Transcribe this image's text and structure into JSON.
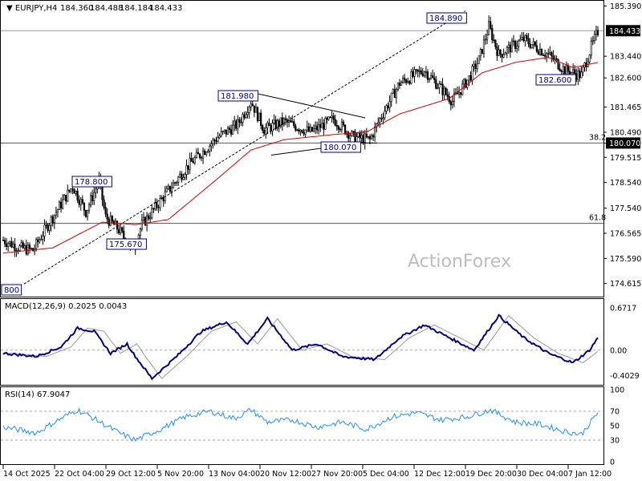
{
  "header": {
    "symbol": "EURJPY,H4",
    "open": "184.360",
    "high": "184.488",
    "low": "184.184",
    "close": "184.433"
  },
  "watermark": "ActionForex",
  "colors": {
    "candle": "#000000",
    "ma": "#d40000",
    "macd": "#000080",
    "signal": "#999999",
    "rsi": "#1e90ff",
    "grid": "#c0c0c0",
    "box": "#000080"
  },
  "chart_data": [
    {
      "type": "candlestick",
      "title": "EURJPY,H4",
      "ylim": [
        174.2,
        185.5
      ],
      "y_ticks": [
        "185.390",
        "184.433",
        "183.440",
        "182.600",
        "181.465",
        "180.490",
        "180.070",
        "179.515",
        "178.540",
        "177.540",
        "176.565",
        "175.590",
        "174.615"
      ],
      "x_ticks": [
        "14 Oct 2025",
        "22 Oct 04:00",
        "29 Oct 12:00",
        "5 Nov 20:00",
        "13 Nov 04:00",
        "20 Nov 12:00",
        "27 Nov 20:00",
        "5 Dec 04:00",
        "12 Dec 12:00",
        "19 Dec 20:00",
        "30 Dec 04:00",
        "7 Jan 12:00"
      ],
      "close_anchors": [
        [
          0,
          176.3
        ],
        [
          10,
          176.0
        ],
        [
          18,
          175.9
        ],
        [
          28,
          177.0
        ],
        [
          42,
          178.4
        ],
        [
          50,
          177.4
        ],
        [
          58,
          178.6
        ],
        [
          62,
          177.2
        ],
        [
          70,
          176.7
        ],
        [
          78,
          175.9
        ],
        [
          84,
          176.9
        ],
        [
          96,
          177.9
        ],
        [
          112,
          179.2
        ],
        [
          130,
          180.3
        ],
        [
          142,
          180.8
        ],
        [
          150,
          181.7
        ],
        [
          158,
          180.6
        ],
        [
          170,
          180.9
        ],
        [
          186,
          180.5
        ],
        [
          200,
          181.0
        ],
        [
          212,
          180.3
        ],
        [
          222,
          180.2
        ],
        [
          228,
          181.0
        ],
        [
          240,
          182.4
        ],
        [
          255,
          182.9
        ],
        [
          262,
          182.4
        ],
        [
          272,
          181.7
        ],
        [
          282,
          182.6
        ],
        [
          288,
          183.3
        ],
        [
          294,
          184.6
        ],
        [
          300,
          183.5
        ],
        [
          315,
          184.1
        ],
        [
          330,
          183.5
        ],
        [
          340,
          182.9
        ],
        [
          350,
          182.7
        ],
        [
          356,
          183.8
        ],
        [
          360,
          184.4
        ]
      ],
      "ma_anchors": [
        [
          0,
          175.8
        ],
        [
          30,
          176.0
        ],
        [
          60,
          177.0
        ],
        [
          80,
          176.9
        ],
        [
          100,
          177.1
        ],
        [
          130,
          178.7
        ],
        [
          150,
          179.8
        ],
        [
          170,
          180.2
        ],
        [
          200,
          180.4
        ],
        [
          220,
          180.5
        ],
        [
          240,
          181.2
        ],
        [
          270,
          181.8
        ],
        [
          290,
          182.8
        ],
        [
          310,
          183.2
        ],
        [
          330,
          183.4
        ],
        [
          345,
          183.0
        ],
        [
          360,
          183.2
        ]
      ],
      "levels": [
        {
          "label": "38.2",
          "value": "180.070"
        },
        {
          "label": "61.8",
          "value": "176.950"
        }
      ],
      "annotations": [
        "184.890",
        "181.980",
        "180.070",
        "178.800",
        "175.670",
        "182.600",
        "800"
      ],
      "current_price": "184.433"
    },
    {
      "type": "line",
      "title": "MACD(12,26,9) 0.2025 0.0043",
      "ylim": [
        -0.5,
        0.75
      ],
      "y_ticks": [
        "0.6717",
        "0.00",
        "-0.4029"
      ],
      "macd_anchors": [
        [
          0,
          -0.05
        ],
        [
          20,
          -0.1
        ],
        [
          35,
          0.05
        ],
        [
          45,
          0.35
        ],
        [
          55,
          0.3
        ],
        [
          65,
          -0.05
        ],
        [
          75,
          0.1
        ],
        [
          80,
          -0.1
        ],
        [
          90,
          -0.45
        ],
        [
          105,
          -0.1
        ],
        [
          120,
          0.3
        ],
        [
          135,
          0.45
        ],
        [
          148,
          0.1
        ],
        [
          160,
          0.5
        ],
        [
          175,
          0.0
        ],
        [
          190,
          0.1
        ],
        [
          205,
          -0.1
        ],
        [
          225,
          -0.15
        ],
        [
          240,
          0.2
        ],
        [
          255,
          0.4
        ],
        [
          270,
          0.2
        ],
        [
          285,
          0.0
        ],
        [
          300,
          0.55
        ],
        [
          315,
          0.2
        ],
        [
          330,
          -0.05
        ],
        [
          345,
          -0.2
        ],
        [
          355,
          0.0
        ],
        [
          360,
          0.2
        ]
      ],
      "signal_lag": 6
    },
    {
      "type": "line",
      "title": "RSI(14) 67.9047",
      "ylim": [
        0,
        100
      ],
      "y_ticks": [
        "100",
        "70",
        "50",
        "30",
        "0"
      ],
      "rsi_anchors": [
        [
          0,
          48
        ],
        [
          20,
          40
        ],
        [
          35,
          60
        ],
        [
          45,
          72
        ],
        [
          55,
          60
        ],
        [
          70,
          40
        ],
        [
          80,
          30
        ],
        [
          95,
          45
        ],
        [
          110,
          62
        ],
        [
          125,
          70
        ],
        [
          140,
          60
        ],
        [
          150,
          72
        ],
        [
          160,
          55
        ],
        [
          175,
          58
        ],
        [
          190,
          48
        ],
        [
          205,
          55
        ],
        [
          220,
          45
        ],
        [
          235,
          62
        ],
        [
          250,
          68
        ],
        [
          265,
          58
        ],
        [
          280,
          62
        ],
        [
          295,
          72
        ],
        [
          310,
          55
        ],
        [
          325,
          52
        ],
        [
          340,
          42
        ],
        [
          350,
          38
        ],
        [
          360,
          68
        ]
      ]
    }
  ]
}
